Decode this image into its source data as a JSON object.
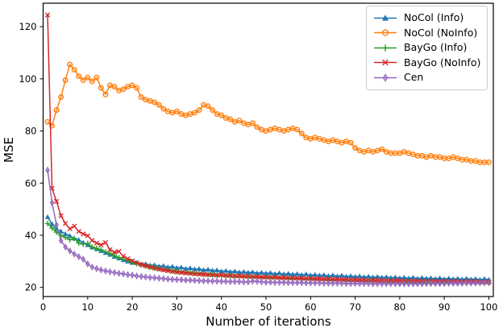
{
  "figure": {
    "background": "#ffffff",
    "axis_color": "#000000"
  },
  "chart_data": {
    "type": "line",
    "title": "",
    "xlabel": "Number of iterations",
    "ylabel": "MSE",
    "xlim": [
      0,
      101
    ],
    "ylim": [
      16.5,
      129
    ],
    "xticks": [
      0,
      10,
      20,
      30,
      40,
      50,
      60,
      70,
      80,
      90,
      100
    ],
    "yticks": [
      20,
      40,
      60,
      80,
      100,
      120
    ],
    "grid": false,
    "legend_position": "upper right",
    "x": [
      1,
      2,
      3,
      4,
      5,
      6,
      7,
      8,
      9,
      10,
      11,
      12,
      13,
      14,
      15,
      16,
      17,
      18,
      19,
      20,
      21,
      22,
      23,
      24,
      25,
      26,
      27,
      28,
      29,
      30,
      31,
      32,
      33,
      34,
      35,
      36,
      37,
      38,
      39,
      40,
      41,
      42,
      43,
      44,
      45,
      46,
      47,
      48,
      49,
      50,
      51,
      52,
      53,
      54,
      55,
      56,
      57,
      58,
      59,
      60,
      61,
      62,
      63,
      64,
      65,
      66,
      67,
      68,
      69,
      70,
      71,
      72,
      73,
      74,
      75,
      76,
      77,
      78,
      79,
      80,
      81,
      82,
      83,
      84,
      85,
      86,
      87,
      88,
      89,
      90,
      91,
      92,
      93,
      94,
      95,
      96,
      97,
      98,
      99,
      100
    ],
    "series": [
      {
        "name": "NoCol (Info)",
        "color": "#1f77b4",
        "marker": "triangle-up",
        "values": [
          47.0,
          44.3,
          42.5,
          41.5,
          40.5,
          39.8,
          38.8,
          38.2,
          37.2,
          36.3,
          35.4,
          34.7,
          34.0,
          33.3,
          32.6,
          31.8,
          31.2,
          30.5,
          30.0,
          29.5,
          29.5,
          28.9,
          29.0,
          28.5,
          28.6,
          28.1,
          28.3,
          27.8,
          28.0,
          27.5,
          27.7,
          27.2,
          27.4,
          27.0,
          27.1,
          26.7,
          26.9,
          26.5,
          26.6,
          26.2,
          26.4,
          26.0,
          26.2,
          25.8,
          26.0,
          25.7,
          25.9,
          25.5,
          25.7,
          25.4,
          25.6,
          25.2,
          25.5,
          25.1,
          25.3,
          25.0,
          25.2,
          24.8,
          25.1,
          24.7,
          24.9,
          24.6,
          24.8,
          24.4,
          24.7,
          24.3,
          24.6,
          24.2,
          24.4,
          24.1,
          24.3,
          24.0,
          24.2,
          23.9,
          24.1,
          23.8,
          24.0,
          23.7,
          23.9,
          23.6,
          23.8,
          23.5,
          23.8,
          23.4,
          23.7,
          23.4,
          23.6,
          23.3,
          23.6,
          23.2,
          23.5,
          23.2,
          23.4,
          23.1,
          23.4,
          23.1,
          23.3,
          23.0,
          23.3,
          23.0
        ]
      },
      {
        "name": "NoCol (NoInfo)",
        "color": "#ff7f0e",
        "marker": "circle-open",
        "values": [
          83.5,
          82.0,
          88.0,
          93.0,
          99.5,
          105.5,
          103.5,
          101.0,
          99.5,
          100.5,
          99.0,
          100.5,
          96.5,
          94.0,
          97.5,
          97.0,
          95.5,
          96.0,
          97.0,
          97.5,
          96.5,
          93.0,
          92.0,
          91.5,
          91.0,
          90.0,
          88.5,
          87.5,
          87.0,
          87.5,
          86.5,
          86.0,
          86.5,
          87.0,
          88.0,
          90.0,
          89.5,
          88.0,
          86.5,
          86.0,
          85.0,
          84.5,
          83.5,
          84.0,
          83.0,
          82.5,
          83.0,
          81.5,
          80.5,
          80.0,
          80.5,
          81.0,
          80.5,
          80.0,
          80.5,
          81.0,
          80.5,
          79.0,
          77.5,
          77.0,
          77.5,
          77.0,
          76.5,
          76.0,
          76.5,
          76.0,
          75.5,
          76.0,
          75.5,
          73.5,
          72.5,
          72.0,
          72.5,
          72.0,
          72.5,
          73.0,
          72.0,
          71.5,
          71.5,
          71.5,
          72.0,
          71.5,
          71.0,
          70.5,
          70.5,
          70.0,
          70.5,
          70.0,
          70.0,
          69.5,
          69.5,
          70.0,
          69.5,
          69.0,
          69.0,
          68.5,
          68.5,
          68.0,
          68.0,
          68.0
        ]
      },
      {
        "name": "BayGo (Info)",
        "color": "#2ca02c",
        "marker": "plus",
        "values": [
          44.5,
          42.8,
          41.2,
          40.0,
          39.2,
          38.3,
          38.8,
          37.0,
          36.6,
          36.9,
          35.5,
          35.0,
          34.4,
          33.6,
          33.0,
          32.2,
          31.4,
          30.8,
          30.2,
          29.7,
          29.1,
          28.6,
          28.1,
          27.8,
          27.4,
          27.2,
          26.9,
          26.7,
          26.4,
          26.1,
          26.0,
          25.8,
          25.6,
          25.5,
          25.3,
          25.1,
          25.0,
          24.9,
          24.7,
          24.6,
          24.5,
          24.4,
          24.3,
          24.2,
          24.1,
          24.0,
          23.9,
          23.8,
          23.7,
          23.6,
          23.6,
          23.5,
          23.4,
          23.4,
          23.3,
          23.2,
          23.2,
          23.1,
          23.0,
          23.0,
          22.9,
          22.8,
          22.8,
          22.7,
          22.7,
          22.6,
          22.6,
          22.5,
          22.5,
          22.4,
          22.4,
          22.3,
          22.3,
          22.2,
          22.2,
          22.2,
          22.1,
          22.1,
          22.1,
          22.0,
          22.0,
          22.0,
          21.9,
          21.9,
          21.9,
          21.9,
          21.8,
          21.8,
          21.8,
          21.8,
          21.8,
          21.7,
          21.7,
          21.7,
          21.7,
          21.7,
          21.7,
          21.6,
          21.6,
          21.6
        ]
      },
      {
        "name": "BayGo (NoInfo)",
        "color": "#d62728",
        "marker": "x",
        "values": [
          124.5,
          58.0,
          53.0,
          47.5,
          44.5,
          42.5,
          43.5,
          41.5,
          40.5,
          39.8,
          38.0,
          37.0,
          36.3,
          37.2,
          34.5,
          33.5,
          33.8,
          32.0,
          31.0,
          30.2,
          29.4,
          28.8,
          28.3,
          27.8,
          27.4,
          27.0,
          26.7,
          26.4,
          26.1,
          25.9,
          25.7,
          25.5,
          25.4,
          25.2,
          25.1,
          25.0,
          24.9,
          24.8,
          24.7,
          24.8,
          24.6,
          24.5,
          24.4,
          24.4,
          24.3,
          24.2,
          24.2,
          24.1,
          24.0,
          24.0,
          23.9,
          23.9,
          23.8,
          23.7,
          23.7,
          23.6,
          23.6,
          23.5,
          23.5,
          23.4,
          23.4,
          23.3,
          23.3,
          23.2,
          23.2,
          23.1,
          23.1,
          23.0,
          23.0,
          22.9,
          22.9,
          22.8,
          22.8,
          22.8,
          22.7,
          22.7,
          22.7,
          22.6,
          22.6,
          22.6,
          22.5,
          22.5,
          22.5,
          22.4,
          22.4,
          22.4,
          22.4,
          22.3,
          22.3,
          22.3,
          22.3,
          22.3,
          22.2,
          22.2,
          22.2,
          22.2,
          22.2,
          22.1,
          22.1,
          22.1
        ]
      },
      {
        "name": "Cen",
        "color": "#9467bd",
        "marker": "diamond",
        "values": [
          65.0,
          52.5,
          44.0,
          38.0,
          35.5,
          34.0,
          32.8,
          31.8,
          30.8,
          29.0,
          27.8,
          27.2,
          26.7,
          26.3,
          26.0,
          25.7,
          25.4,
          25.2,
          24.9,
          24.7,
          24.4,
          24.2,
          24.0,
          23.8,
          23.7,
          23.5,
          23.4,
          23.2,
          23.1,
          23.0,
          22.9,
          22.8,
          22.8,
          22.7,
          22.6,
          22.5,
          22.5,
          22.4,
          22.4,
          22.3,
          22.3,
          22.2,
          22.2,
          22.2,
          22.1,
          22.1,
          22.4,
          22.3,
          22.1,
          22.0,
          22.0,
          21.9,
          21.9,
          21.9,
          21.8,
          21.8,
          21.8,
          21.8,
          21.7,
          21.7,
          21.7,
          21.7,
          21.6,
          21.6,
          21.6,
          21.6,
          21.6,
          21.5,
          21.5,
          21.5,
          21.5,
          21.5,
          21.5,
          21.4,
          21.4,
          21.4,
          21.4,
          21.4,
          21.4,
          21.4,
          21.4,
          21.4,
          21.4,
          21.4,
          21.4,
          21.5,
          21.5,
          21.5,
          21.5,
          21.5,
          21.6,
          21.6,
          21.6,
          21.6,
          21.7,
          21.7,
          21.7,
          21.8,
          21.8,
          21.8
        ]
      }
    ]
  }
}
